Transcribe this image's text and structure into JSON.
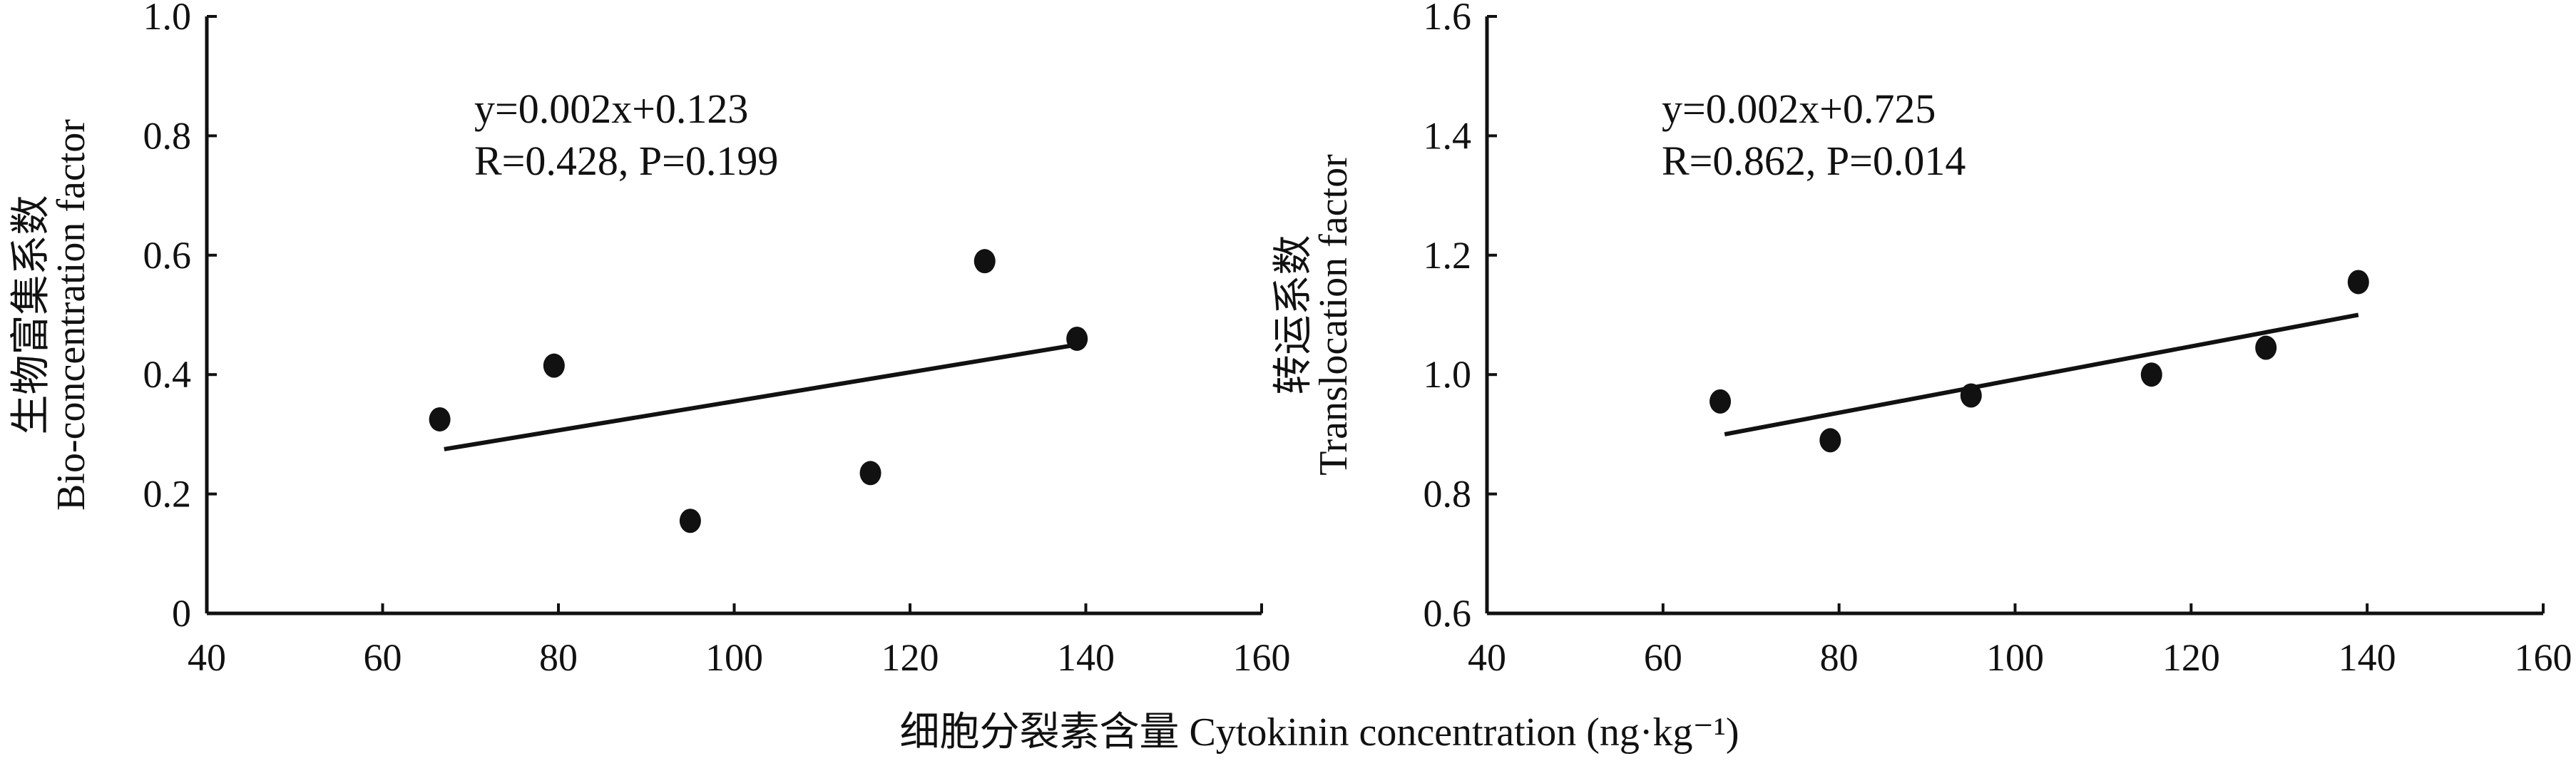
{
  "chart_data": [
    {
      "type": "scatter",
      "ylabel_cn": "生物富集系数",
      "ylabel": "Bio-concentration factor",
      "xlim": [
        40,
        160
      ],
      "ylim": [
        0,
        1.0
      ],
      "xticks": [
        "40",
        "60",
        "80",
        "100",
        "120",
        "140",
        "160"
      ],
      "yticks": [
        "0",
        "0.2",
        "0.4",
        "0.6",
        "0.8",
        "1.0"
      ],
      "points": {
        "x": [
          66.5,
          79.5,
          95,
          115.5,
          128.5,
          139
        ],
        "y": [
          0.325,
          0.415,
          0.155,
          0.235,
          0.59,
          0.46
        ]
      },
      "fit_line": {
        "x": [
          67,
          139
        ],
        "y": [
          0.275,
          0.45
        ]
      },
      "equation": "y=0.002x+0.123",
      "stats": "R=0.428, P=0.199"
    },
    {
      "type": "scatter",
      "ylabel_cn": "转运系数",
      "ylabel": "Translocation factor",
      "xlim": [
        40,
        160
      ],
      "ylim": [
        0.6,
        1.6
      ],
      "xticks": [
        "40",
        "60",
        "80",
        "100",
        "120",
        "140",
        "160"
      ],
      "yticks": [
        "0.6",
        "0.8",
        "1.0",
        "1.2",
        "1.4",
        "1.6"
      ],
      "points": {
        "x": [
          66.5,
          79,
          95,
          115.5,
          128.5,
          139
        ],
        "y": [
          0.955,
          0.89,
          0.965,
          1.0,
          1.045,
          1.155
        ]
      },
      "fit_line": {
        "x": [
          67,
          139
        ],
        "y": [
          0.9,
          1.1
        ]
      },
      "equation": "y=0.002x+0.725",
      "stats": "R=0.862, P=0.014"
    }
  ],
  "shared_xlabel": "细胞分裂素含量 Cytokinin concentration (ng·kg⁻¹)"
}
